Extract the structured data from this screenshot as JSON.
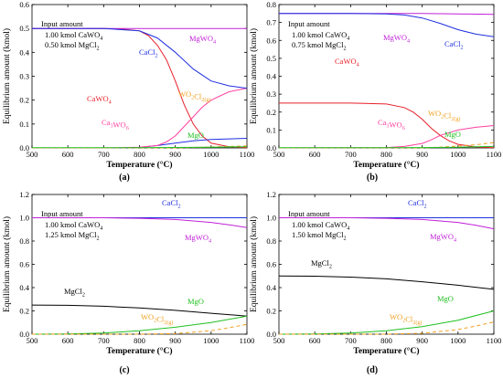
{
  "chart_data": [
    {
      "type": "line",
      "panel_label": "(a)",
      "xlabel": "Temperature (°C)",
      "ylabel": "Equilibrium amount (kmol)",
      "xlim": [
        500,
        1100
      ],
      "ylim": [
        0,
        0.6
      ],
      "xticks": [
        "500",
        "600",
        "700",
        "800",
        "900",
        "1000",
        "1100"
      ],
      "yticks": [
        "0.0",
        "0.1",
        "0.2",
        "0.3",
        "0.4",
        "0.5",
        "0.6"
      ],
      "input_label": "Input amount",
      "input_lines": [
        {
          "pre": "1.00 kmol CaWO",
          "sub": "4"
        },
        {
          "pre": "0.50 kmol MgCl",
          "sub": "2"
        }
      ],
      "series": [
        {
          "name": "CaWO4",
          "color": "#e8202a",
          "dash": false,
          "x": [
            500,
            600,
            700,
            750,
            800,
            825,
            850,
            875,
            900,
            925,
            950,
            975,
            1000,
            1050,
            1100
          ],
          "values": [
            0.5,
            0.5,
            0.5,
            0.498,
            0.49,
            0.47,
            0.43,
            0.37,
            0.28,
            0.18,
            0.1,
            0.05,
            0.02,
            0.005,
            0.001
          ]
        },
        {
          "name": "CaCl2",
          "color": "#1f2fe0",
          "dash": false,
          "x": [
            500,
            600,
            700,
            750,
            800,
            850,
            900,
            950,
            1000,
            1050,
            1100
          ],
          "values": [
            0,
            0,
            0,
            0,
            0.002,
            0.01,
            0.02,
            0.03,
            0.035,
            0.038,
            0.04
          ]
        },
        {
          "name": "MgWO4",
          "color": "#c020d8",
          "dash": false,
          "x": [
            500,
            600,
            700,
            800,
            900,
            1000,
            1100
          ],
          "values": [
            0.5,
            0.5,
            0.5,
            0.5,
            0.5,
            0.5,
            0.5
          ]
        },
        {
          "name": "Ca3WO6",
          "color": "#ff40a0",
          "dash": false,
          "x": [
            500,
            700,
            800,
            850,
            875,
            900,
            925,
            950,
            975,
            1000,
            1050,
            1100
          ],
          "values": [
            0,
            0,
            0.003,
            0.01,
            0.025,
            0.05,
            0.09,
            0.13,
            0.17,
            0.2,
            0.235,
            0.25
          ]
        },
        {
          "name": "CaCl2 main",
          "color": "#1f2fe0",
          "dash": false,
          "x": [
            500,
            700,
            800,
            850,
            900,
            950,
            1000,
            1050,
            1100
          ],
          "values": [
            0.5,
            0.5,
            0.49,
            0.46,
            0.4,
            0.33,
            0.28,
            0.26,
            0.25
          ]
        },
        {
          "name": "WO2Cl2(g)",
          "color": "#f0a020",
          "dash": true,
          "x": [
            500,
            900,
            950,
            1000,
            1050,
            1100
          ],
          "values": [
            0,
            0,
            0.002,
            0.004,
            0.006,
            0.008
          ]
        },
        {
          "name": "MgO",
          "color": "#20c020",
          "dash": false,
          "x": [
            500,
            800,
            900,
            1000,
            1100
          ],
          "values": [
            0.001,
            0.001,
            0.002,
            0.003,
            0.005
          ]
        }
      ],
      "labels": [
        {
          "pre": "CaCl",
          "sub": "2",
          "color": "#1f2fe0"
        },
        {
          "pre": "MgWO",
          "sub": "4",
          "color": "#c020d8"
        },
        {
          "pre": "CaWO",
          "sub": "4",
          "color": "#e8202a"
        },
        {
          "pre": "WO",
          "mid": "2",
          "pre2": "Cl",
          "sub": "2(g)",
          "color": "#f0a020"
        },
        {
          "pre": "Ca",
          "mid": "3",
          "pre2": "WO",
          "sub": "6",
          "color": "#ff40a0"
        },
        {
          "pre": "MgO",
          "sub": "",
          "color": "#20c020"
        }
      ]
    },
    {
      "type": "line",
      "panel_label": "(b)",
      "xlabel": "Temperature (°C)",
      "ylabel": "Equilibrium amount (kmol)",
      "xlim": [
        500,
        1100
      ],
      "ylim": [
        0,
        0.8
      ],
      "xticks": [
        "500",
        "600",
        "700",
        "800",
        "900",
        "1000",
        "1100"
      ],
      "yticks": [
        "0.0",
        "0.1",
        "0.2",
        "0.3",
        "0.4",
        "0.5",
        "0.6",
        "0.7",
        "0.8"
      ],
      "input_label": "Input amount",
      "input_lines": [
        {
          "pre": "1.00 kmol CaWO",
          "sub": "4"
        },
        {
          "pre": "0.75 kmol MgCl",
          "sub": "2"
        }
      ],
      "series": [
        {
          "name": "MgWO4",
          "color": "#c020d8",
          "dash": false,
          "x": [
            500,
            700,
            800,
            900,
            1000,
            1100
          ],
          "values": [
            0.75,
            0.75,
            0.75,
            0.75,
            0.748,
            0.745
          ]
        },
        {
          "name": "CaCl2",
          "color": "#1f2fe0",
          "dash": false,
          "x": [
            500,
            700,
            800,
            850,
            900,
            950,
            1000,
            1050,
            1100
          ],
          "values": [
            0.75,
            0.75,
            0.748,
            0.742,
            0.725,
            0.695,
            0.66,
            0.635,
            0.62
          ]
        },
        {
          "name": "CaWO4",
          "color": "#e8202a",
          "dash": false,
          "x": [
            500,
            700,
            800,
            850,
            875,
            900,
            925,
            950,
            975,
            1000,
            1050,
            1100
          ],
          "values": [
            0.25,
            0.25,
            0.245,
            0.225,
            0.2,
            0.16,
            0.11,
            0.07,
            0.04,
            0.02,
            0.005,
            0.001
          ]
        },
        {
          "name": "Ca3WO6",
          "color": "#ff40a0",
          "dash": false,
          "x": [
            500,
            800,
            850,
            900,
            925,
            950,
            1000,
            1050,
            1100
          ],
          "values": [
            0,
            0.002,
            0.008,
            0.025,
            0.045,
            0.07,
            0.1,
            0.115,
            0.125
          ]
        },
        {
          "name": "WO2Cl2(g)",
          "color": "#f0a020",
          "dash": true,
          "x": [
            500,
            900,
            950,
            1000,
            1050,
            1100
          ],
          "values": [
            0,
            0,
            0.004,
            0.01,
            0.018,
            0.03
          ]
        },
        {
          "name": "MgO",
          "color": "#20c020",
          "dash": false,
          "x": [
            500,
            800,
            900,
            1000,
            1100
          ],
          "values": [
            0.001,
            0.001,
            0.002,
            0.004,
            0.008
          ]
        }
      ],
      "labels": [
        {
          "pre": "MgWO",
          "sub": "4",
          "color": "#c020d8"
        },
        {
          "pre": "CaCl",
          "sub": "2",
          "color": "#1f2fe0"
        },
        {
          "pre": "CaWO",
          "sub": "4",
          "color": "#e8202a"
        },
        {
          "pre": "WO",
          "mid": "2",
          "pre2": "Cl",
          "sub": "2(g)",
          "color": "#f0a020"
        },
        {
          "pre": "Ca",
          "mid": "3",
          "pre2": "WO",
          "sub": "6",
          "color": "#ff40a0"
        },
        {
          "pre": "MgO",
          "sub": "",
          "color": "#20c020"
        }
      ]
    },
    {
      "type": "line",
      "panel_label": "(c)",
      "xlabel": "Temperature (°C)",
      "ylabel": "Equilibrium amount (kmol)",
      "xlim": [
        500,
        1100
      ],
      "ylim": [
        0,
        1.2
      ],
      "xticks": [
        "500",
        "600",
        "700",
        "800",
        "900",
        "1000",
        "1100"
      ],
      "yticks": [
        "0.0",
        "0.2",
        "0.4",
        "0.6",
        "0.8",
        "1.0",
        "1.2"
      ],
      "input_label": "Input amount",
      "input_lines": [
        {
          "pre": "1.00 kmol CaWO",
          "sub": "4"
        },
        {
          "pre": "1.25 kmol MgCl",
          "sub": "2"
        }
      ],
      "series": [
        {
          "name": "CaCl2",
          "color": "#1f2fe0",
          "dash": false,
          "x": [
            500,
            700,
            900,
            1100
          ],
          "values": [
            1.0,
            1.0,
            1.0,
            1.0
          ]
        },
        {
          "name": "MgWO4",
          "color": "#c020d8",
          "dash": false,
          "x": [
            500,
            700,
            800,
            900,
            1000,
            1050,
            1100
          ],
          "values": [
            1.0,
            1.0,
            0.995,
            0.985,
            0.96,
            0.94,
            0.915
          ]
        },
        {
          "name": "MgCl2",
          "color": "#000000",
          "dash": false,
          "x": [
            500,
            600,
            700,
            800,
            900,
            1000,
            1100
          ],
          "values": [
            0.25,
            0.248,
            0.24,
            0.225,
            0.205,
            0.18,
            0.155
          ]
        },
        {
          "name": "MgO",
          "color": "#20c020",
          "dash": false,
          "x": [
            500,
            600,
            700,
            800,
            900,
            1000,
            1100
          ],
          "values": [
            0,
            0.002,
            0.01,
            0.03,
            0.06,
            0.1,
            0.155
          ]
        },
        {
          "name": "WO2Cl2(g)",
          "color": "#f0a020",
          "dash": true,
          "x": [
            500,
            800,
            900,
            1000,
            1050,
            1100
          ],
          "values": [
            0,
            0,
            0.005,
            0.03,
            0.055,
            0.085
          ]
        }
      ],
      "labels": [
        {
          "pre": "CaCl",
          "sub": "2",
          "color": "#1f2fe0"
        },
        {
          "pre": "MgWO",
          "sub": "4",
          "color": "#c020d8"
        },
        {
          "pre": "MgCl",
          "sub": "2",
          "color": "#000000"
        },
        {
          "pre": "MgO",
          "sub": "",
          "color": "#20c020"
        },
        {
          "pre": "WO",
          "mid": "2",
          "pre2": "Cl",
          "sub": "2(g)",
          "color": "#f0a020"
        }
      ]
    },
    {
      "type": "line",
      "panel_label": "(d)",
      "xlabel": "Temperature (°C)",
      "ylabel": "Equilibrium amount (kmol)",
      "xlim": [
        500,
        1100
      ],
      "ylim": [
        0,
        1.2
      ],
      "xticks": [
        "500",
        "600",
        "700",
        "800",
        "900",
        "1000",
        "1100"
      ],
      "yticks": [
        "0.0",
        "0.2",
        "0.4",
        "0.6",
        "0.8",
        "1.0",
        "1.2"
      ],
      "input_label": "Input amount",
      "input_lines": [
        {
          "pre": "1.00 kmol CaWO",
          "sub": "4"
        },
        {
          "pre": "1.50 kmol MgCl",
          "sub": "2"
        }
      ],
      "series": [
        {
          "name": "CaCl2",
          "color": "#1f2fe0",
          "dash": false,
          "x": [
            500,
            700,
            900,
            1100
          ],
          "values": [
            1.0,
            1.0,
            1.0,
            1.0
          ]
        },
        {
          "name": "MgWO4",
          "color": "#c020d8",
          "dash": false,
          "x": [
            500,
            700,
            800,
            900,
            1000,
            1050,
            1100
          ],
          "values": [
            1.0,
            1.0,
            0.995,
            0.985,
            0.96,
            0.935,
            0.905
          ]
        },
        {
          "name": "MgCl2",
          "color": "#000000",
          "dash": false,
          "x": [
            500,
            600,
            700,
            800,
            900,
            1000,
            1100
          ],
          "values": [
            0.5,
            0.498,
            0.49,
            0.475,
            0.45,
            0.42,
            0.385
          ]
        },
        {
          "name": "MgO",
          "color": "#20c020",
          "dash": false,
          "x": [
            500,
            600,
            700,
            800,
            900,
            1000,
            1100
          ],
          "values": [
            0,
            0.002,
            0.01,
            0.03,
            0.065,
            0.12,
            0.2
          ]
        },
        {
          "name": "WO2Cl2(g)",
          "color": "#f0a020",
          "dash": true,
          "x": [
            500,
            800,
            900,
            1000,
            1050,
            1100
          ],
          "values": [
            0,
            0,
            0.008,
            0.04,
            0.07,
            0.105
          ]
        }
      ],
      "labels": [
        {
          "pre": "CaCl",
          "sub": "2",
          "color": "#1f2fe0"
        },
        {
          "pre": "MgWO",
          "sub": "4",
          "color": "#c020d8"
        },
        {
          "pre": "MgCl",
          "sub": "2",
          "color": "#000000"
        },
        {
          "pre": "MgO",
          "sub": "",
          "color": "#20c020"
        },
        {
          "pre": "WO",
          "mid": "2",
          "pre2": "Cl",
          "sub": "2(g)",
          "color": "#f0a020"
        }
      ]
    }
  ]
}
